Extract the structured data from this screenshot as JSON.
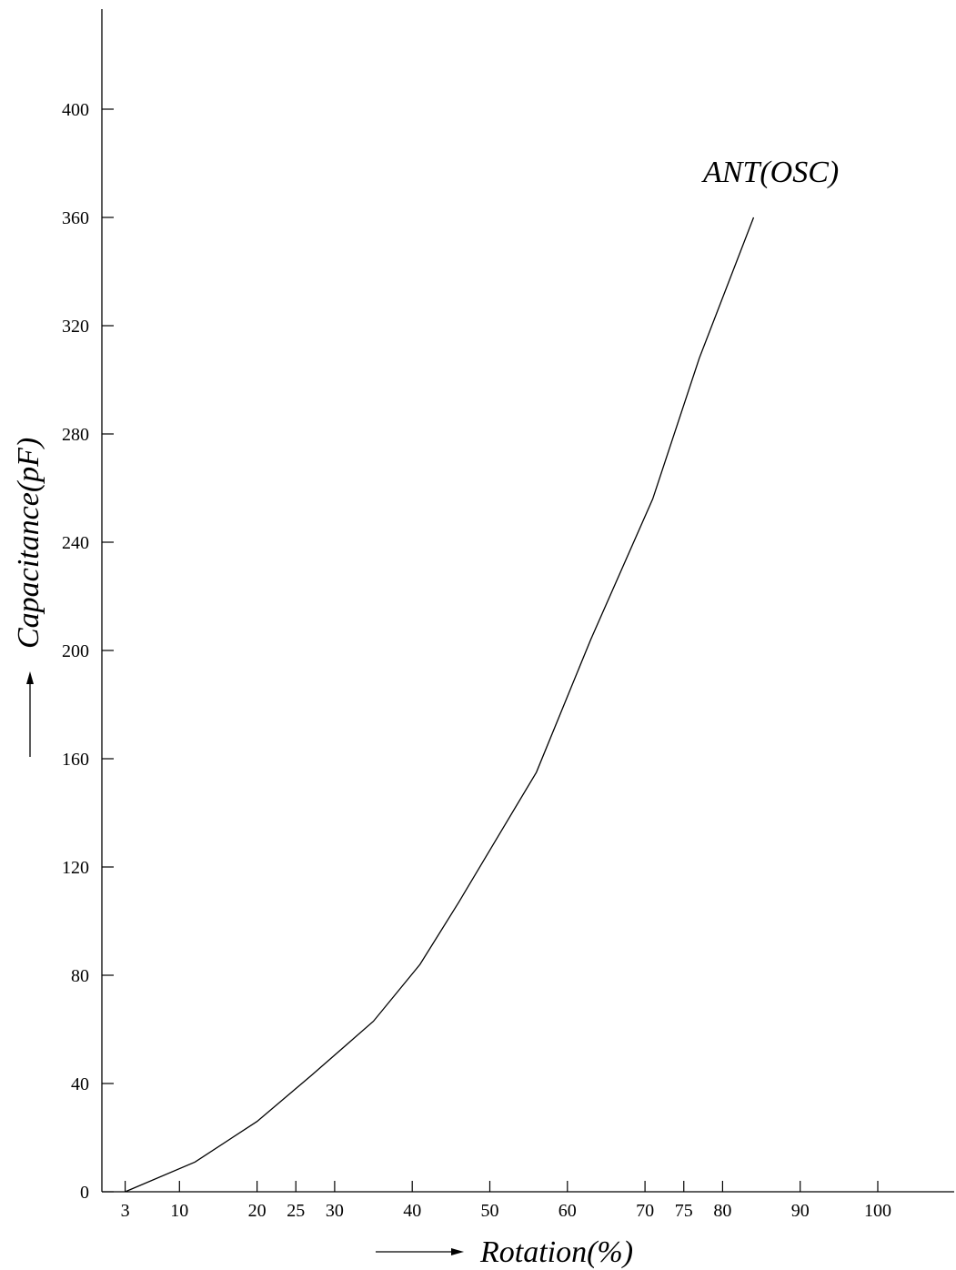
{
  "chart_data": {
    "type": "line",
    "title": "",
    "xlabel": "Rotation(%)",
    "ylabel": "Capacitance(pF)",
    "xlim": [
      0,
      100
    ],
    "ylim": [
      0,
      400
    ],
    "x_ticks": [
      3,
      10,
      20,
      25,
      30,
      40,
      50,
      60,
      70,
      75,
      80,
      90,
      100
    ],
    "y_ticks": [
      0,
      40,
      80,
      120,
      160,
      200,
      240,
      280,
      320,
      360,
      400
    ],
    "grid": false,
    "series": [
      {
        "name": "ANT(OSC)",
        "x": [
          3,
          12,
          20,
          27,
          35,
          41,
          46,
          51,
          56,
          63,
          71,
          77,
          84
        ],
        "y": [
          0,
          11,
          26,
          43,
          63,
          84,
          107,
          131,
          155,
          204,
          256,
          308,
          360
        ]
      }
    ]
  }
}
